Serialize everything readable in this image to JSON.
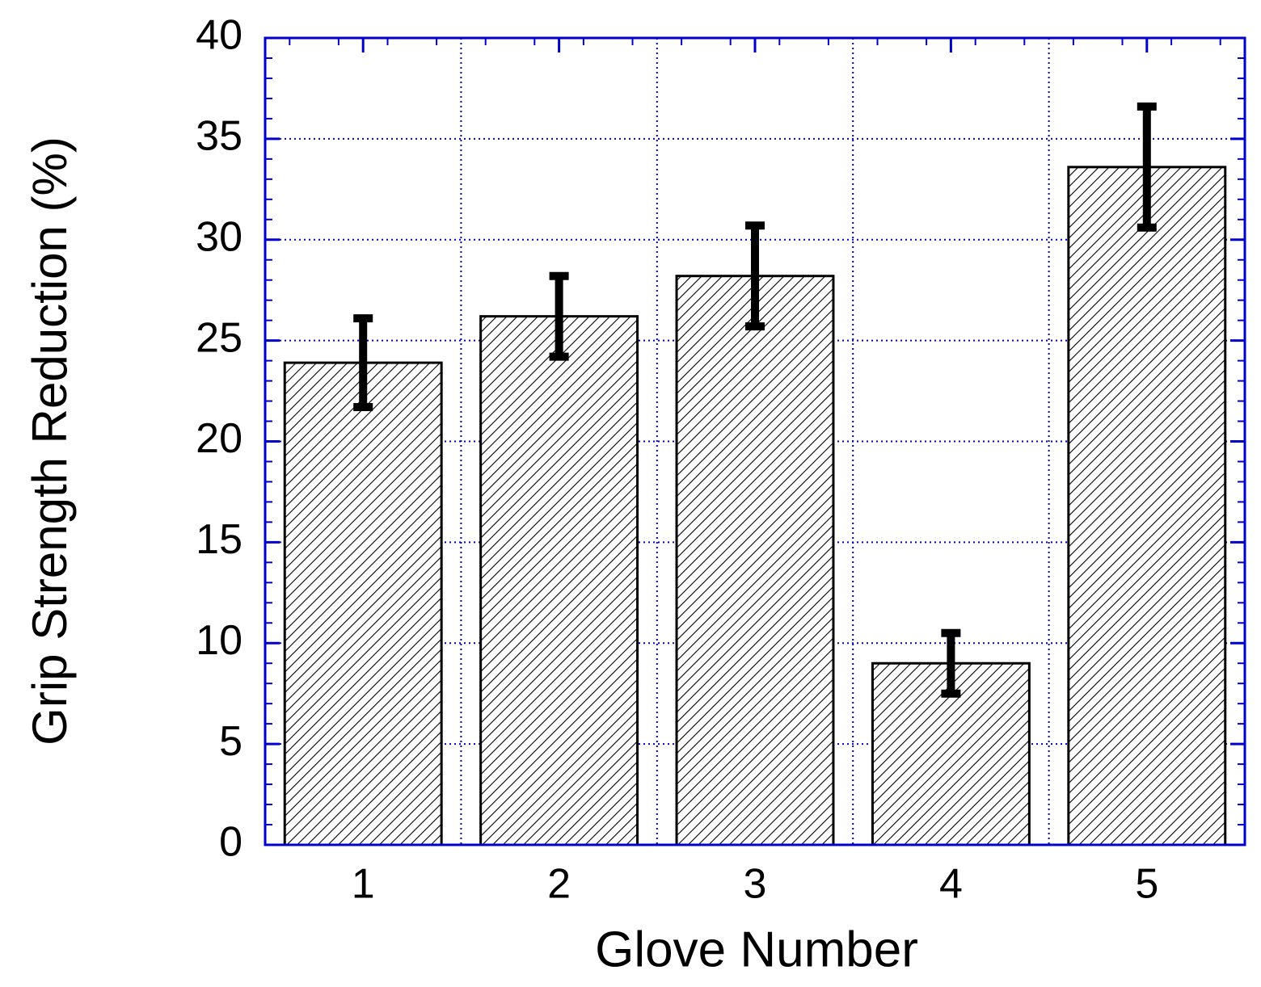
{
  "chart_data": {
    "type": "bar",
    "x_label": "Glove Number",
    "y_label": "Grip Strength Reduction (%)",
    "categories": [
      "1",
      "2",
      "3",
      "4",
      "5"
    ],
    "values": [
      23.9,
      26.2,
      28.2,
      9.0,
      33.6
    ],
    "errors": [
      2.2,
      2.0,
      2.5,
      1.5,
      3.0
    ],
    "color": "#000000",
    "axis_color": "#0000c8",
    "ylim": [
      0,
      40
    ],
    "yticks": [
      0,
      5,
      10,
      15,
      20,
      25,
      30,
      35,
      40
    ],
    "grid": true
  }
}
